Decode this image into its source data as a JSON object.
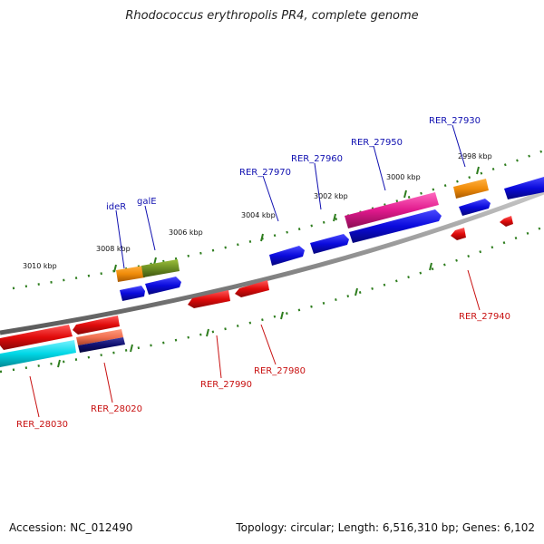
{
  "title": "Rhodococcus erythropolis PR4, complete genome",
  "footer": {
    "accession": "Accession: NC_012490",
    "summary": "Topology: circular; Length: 6,516,310 bp; Genes: 6,102"
  },
  "colors": {
    "backbone": "#8c8c8c",
    "tick": "#2e7d1e",
    "forward_label": "#1010b0",
    "reverse_label": "#c81010",
    "cds_forward": "#0a0adc",
    "cds_reverse": "#e00a0a",
    "orange": "#f08c0a",
    "olive": "#6b8e23",
    "magenta": "#e0198c",
    "cyan": "#00d7e6",
    "salmon": "#f07050",
    "navy": "#101070"
  },
  "scale_labels": [
    "3010 kbp",
    "3008 kbp",
    "3006 kbp",
    "3004 kbp",
    "3002 kbp",
    "3000 kbp",
    "2998 kbp"
  ],
  "gene_labels_forward": [
    "ideR",
    "galE",
    "RER_27970",
    "RER_27960",
    "RER_27950",
    "RER_27930"
  ],
  "gene_labels_reverse": [
    "RER_28030",
    "RER_28020",
    "RER_27990",
    "RER_27980",
    "RER_27940"
  ]
}
